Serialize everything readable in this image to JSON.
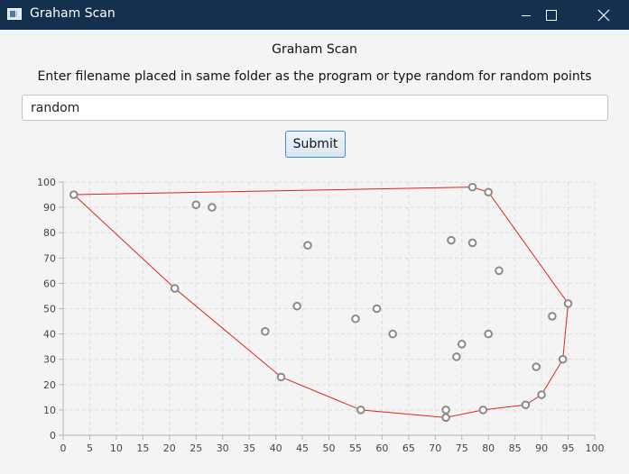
{
  "window": {
    "title": "Graham Scan",
    "app_icon": "window-app-icon",
    "controls": [
      "minimize-icon",
      "maximize-icon",
      "close-icon"
    ],
    "titlebar_color": "#14304f"
  },
  "header": {
    "subtitle": "Graham Scan",
    "prompt": "Enter filename placed in same folder as the program or type random for random points"
  },
  "form": {
    "filename_value": "random",
    "submit_label": "Submit",
    "submit_border_color": "#3d91c8"
  },
  "chart_data": {
    "type": "scatter",
    "xlim": [
      0,
      100
    ],
    "ylim": [
      0,
      100
    ],
    "x_ticks": [
      0,
      5,
      10,
      15,
      20,
      25,
      30,
      35,
      40,
      45,
      50,
      55,
      60,
      65,
      70,
      75,
      80,
      85,
      90,
      95,
      100
    ],
    "y_ticks": [
      0,
      10,
      20,
      30,
      40,
      50,
      60,
      70,
      80,
      90,
      100
    ],
    "grid": true,
    "point_color": "#8a8a8a",
    "hull_color": "#e0241b",
    "points": [
      {
        "x": 2,
        "y": 95
      },
      {
        "x": 25,
        "y": 91
      },
      {
        "x": 28,
        "y": 90
      },
      {
        "x": 77,
        "y": 98
      },
      {
        "x": 80,
        "y": 96
      },
      {
        "x": 46,
        "y": 75
      },
      {
        "x": 73,
        "y": 77
      },
      {
        "x": 77,
        "y": 76
      },
      {
        "x": 82,
        "y": 65
      },
      {
        "x": 21,
        "y": 58
      },
      {
        "x": 95,
        "y": 52
      },
      {
        "x": 44,
        "y": 51
      },
      {
        "x": 59,
        "y": 50
      },
      {
        "x": 55,
        "y": 46
      },
      {
        "x": 92,
        "y": 47
      },
      {
        "x": 38,
        "y": 41
      },
      {
        "x": 62,
        "y": 40
      },
      {
        "x": 80,
        "y": 40
      },
      {
        "x": 75,
        "y": 36
      },
      {
        "x": 74,
        "y": 31
      },
      {
        "x": 94,
        "y": 30
      },
      {
        "x": 89,
        "y": 27
      },
      {
        "x": 41,
        "y": 23
      },
      {
        "x": 90,
        "y": 16
      },
      {
        "x": 87,
        "y": 12
      },
      {
        "x": 56,
        "y": 10
      },
      {
        "x": 72,
        "y": 10
      },
      {
        "x": 79,
        "y": 10
      },
      {
        "x": 72,
        "y": 7
      }
    ],
    "hull": [
      {
        "x": 2,
        "y": 95
      },
      {
        "x": 77,
        "y": 98
      },
      {
        "x": 80,
        "y": 96
      },
      {
        "x": 95,
        "y": 52
      },
      {
        "x": 94,
        "y": 30
      },
      {
        "x": 90,
        "y": 16
      },
      {
        "x": 87,
        "y": 12
      },
      {
        "x": 79,
        "y": 10
      },
      {
        "x": 72,
        "y": 7
      },
      {
        "x": 56,
        "y": 10
      },
      {
        "x": 41,
        "y": 23
      },
      {
        "x": 21,
        "y": 58
      },
      {
        "x": 2,
        "y": 95
      }
    ]
  }
}
